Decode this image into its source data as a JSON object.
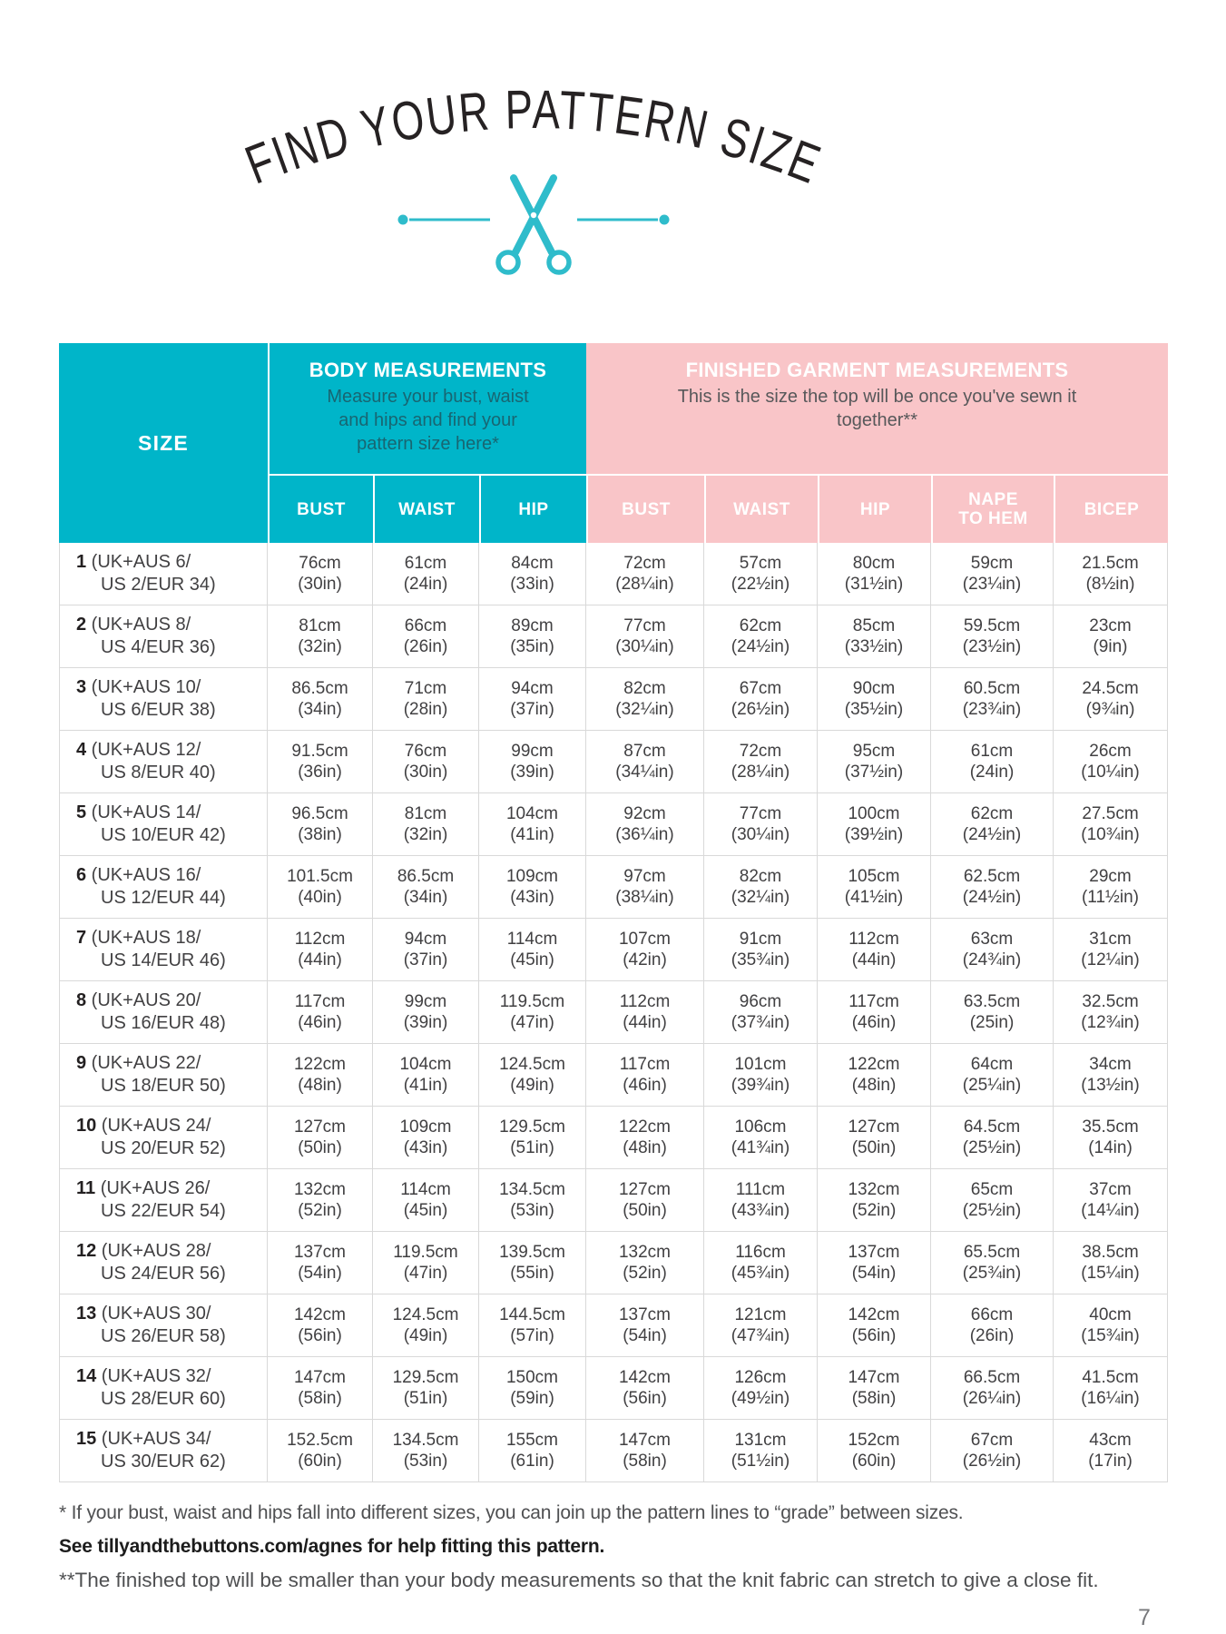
{
  "page_title": "FIND YOUR PATTERN SIZE",
  "colors": {
    "teal": "#00b5c9",
    "pink": "#f9c5c8",
    "divider_teal": "#2fbccb"
  },
  "table": {
    "size_header": "SIZE",
    "groups": {
      "body": {
        "title": "BODY MEASUREMENTS",
        "subtitle": "Measure your bust, waist and hips and find your pattern size here*"
      },
      "finished": {
        "title": "FINISHED GARMENT MEASUREMENTS",
        "subtitle": "This is the size the top will be once you've sewn it together**"
      }
    },
    "body_columns": [
      "BUST",
      "WAIST",
      "HIP"
    ],
    "finished_columns": [
      "BUST",
      "WAIST",
      "HIP",
      "NAPE\nTO HEM",
      "BICEP"
    ],
    "rows": [
      {
        "num": "1",
        "label1": "(UK+AUS 6/",
        "label2": "US 2/EUR 34)",
        "values": [
          [
            "76cm",
            "(30in)"
          ],
          [
            "61cm",
            "(24in)"
          ],
          [
            "84cm",
            "(33in)"
          ],
          [
            "72cm",
            "(28¼in)"
          ],
          [
            "57cm",
            "(22½in)"
          ],
          [
            "80cm",
            "(31½in)"
          ],
          [
            "59cm",
            "(23¼in)"
          ],
          [
            "21.5cm",
            "(8½in)"
          ]
        ]
      },
      {
        "num": "2",
        "label1": "(UK+AUS 8/",
        "label2": "US 4/EUR 36)",
        "values": [
          [
            "81cm",
            "(32in)"
          ],
          [
            "66cm",
            "(26in)"
          ],
          [
            "89cm",
            "(35in)"
          ],
          [
            "77cm",
            "(30¼in)"
          ],
          [
            "62cm",
            "(24½in)"
          ],
          [
            "85cm",
            "(33½in)"
          ],
          [
            "59.5cm",
            "(23½in)"
          ],
          [
            "23cm",
            "(9in)"
          ]
        ]
      },
      {
        "num": "3",
        "label1": "(UK+AUS 10/",
        "label2": "US 6/EUR 38)",
        "values": [
          [
            "86.5cm",
            "(34in)"
          ],
          [
            "71cm",
            "(28in)"
          ],
          [
            "94cm",
            "(37in)"
          ],
          [
            "82cm",
            "(32¼in)"
          ],
          [
            "67cm",
            "(26½in)"
          ],
          [
            "90cm",
            "(35½in)"
          ],
          [
            "60.5cm",
            "(23¾in)"
          ],
          [
            "24.5cm",
            "(9¾in)"
          ]
        ]
      },
      {
        "num": "4",
        "label1": "(UK+AUS 12/",
        "label2": "US 8/EUR 40)",
        "values": [
          [
            "91.5cm",
            "(36in)"
          ],
          [
            "76cm",
            "(30in)"
          ],
          [
            "99cm",
            "(39in)"
          ],
          [
            "87cm",
            "(34¼in)"
          ],
          [
            "72cm",
            "(28¼in)"
          ],
          [
            "95cm",
            "(37½in)"
          ],
          [
            "61cm",
            "(24in)"
          ],
          [
            "26cm",
            "(10¼in)"
          ]
        ]
      },
      {
        "num": "5",
        "label1": "(UK+AUS 14/",
        "label2": "US 10/EUR 42)",
        "values": [
          [
            "96.5cm",
            "(38in)"
          ],
          [
            "81cm",
            "(32in)"
          ],
          [
            "104cm",
            "(41in)"
          ],
          [
            "92cm",
            "(36¼in)"
          ],
          [
            "77cm",
            "(30¼in)"
          ],
          [
            "100cm",
            "(39½in)"
          ],
          [
            "62cm",
            "(24½in)"
          ],
          [
            "27.5cm",
            "(10¾in)"
          ]
        ]
      },
      {
        "num": "6",
        "label1": "(UK+AUS 16/",
        "label2": "US 12/EUR 44)",
        "values": [
          [
            "101.5cm",
            "(40in)"
          ],
          [
            "86.5cm",
            "(34in)"
          ],
          [
            "109cm",
            "(43in)"
          ],
          [
            "97cm",
            "(38¼in)"
          ],
          [
            "82cm",
            "(32¼in)"
          ],
          [
            "105cm",
            "(41½in)"
          ],
          [
            "62.5cm",
            "(24½in)"
          ],
          [
            "29cm",
            "(11½in)"
          ]
        ]
      },
      {
        "num": "7",
        "label1": "(UK+AUS 18/",
        "label2": "US 14/EUR 46)",
        "values": [
          [
            "112cm",
            "(44in)"
          ],
          [
            "94cm",
            "(37in)"
          ],
          [
            "114cm",
            "(45in)"
          ],
          [
            "107cm",
            "(42in)"
          ],
          [
            "91cm",
            "(35¾in)"
          ],
          [
            "112cm",
            "(44in)"
          ],
          [
            "63cm",
            "(24¾in)"
          ],
          [
            "31cm",
            "(12¼in)"
          ]
        ]
      },
      {
        "num": "8",
        "label1": "(UK+AUS 20/",
        "label2": "US 16/EUR 48)",
        "values": [
          [
            "117cm",
            "(46in)"
          ],
          [
            "99cm",
            "(39in)"
          ],
          [
            "119.5cm",
            "(47in)"
          ],
          [
            "112cm",
            "(44in)"
          ],
          [
            "96cm",
            "(37¾in)"
          ],
          [
            "117cm",
            "(46in)"
          ],
          [
            "63.5cm",
            "(25in)"
          ],
          [
            "32.5cm",
            "(12¾in)"
          ]
        ]
      },
      {
        "num": "9",
        "label1": "(UK+AUS 22/",
        "label2": "US 18/EUR 50)",
        "values": [
          [
            "122cm",
            "(48in)"
          ],
          [
            "104cm",
            "(41in)"
          ],
          [
            "124.5cm",
            "(49in)"
          ],
          [
            "117cm",
            "(46in)"
          ],
          [
            "101cm",
            "(39¾in)"
          ],
          [
            "122cm",
            "(48in)"
          ],
          [
            "64cm",
            "(25¼in)"
          ],
          [
            "34cm",
            "(13½in)"
          ]
        ]
      },
      {
        "num": "10",
        "label1": "(UK+AUS 24/",
        "label2": "US 20/EUR 52)",
        "values": [
          [
            "127cm",
            "(50in)"
          ],
          [
            "109cm",
            "(43in)"
          ],
          [
            "129.5cm",
            "(51in)"
          ],
          [
            "122cm",
            "(48in)"
          ],
          [
            "106cm",
            "(41¾in)"
          ],
          [
            "127cm",
            "(50in)"
          ],
          [
            "64.5cm",
            "(25½in)"
          ],
          [
            "35.5cm",
            "(14in)"
          ]
        ]
      },
      {
        "num": "11",
        "label1": "(UK+AUS 26/",
        "label2": "US 22/EUR 54)",
        "values": [
          [
            "132cm",
            "(52in)"
          ],
          [
            "114cm",
            "(45in)"
          ],
          [
            "134.5cm",
            "(53in)"
          ],
          [
            "127cm",
            "(50in)"
          ],
          [
            "111cm",
            "(43¾in)"
          ],
          [
            "132cm",
            "(52in)"
          ],
          [
            "65cm",
            "(25½in)"
          ],
          [
            "37cm",
            "(14¼in)"
          ]
        ]
      },
      {
        "num": "12",
        "label1": "(UK+AUS 28/",
        "label2": "US 24/EUR 56)",
        "values": [
          [
            "137cm",
            "(54in)"
          ],
          [
            "119.5cm",
            "(47in)"
          ],
          [
            "139.5cm",
            "(55in)"
          ],
          [
            "132cm",
            "(52in)"
          ],
          [
            "116cm",
            "(45¾in)"
          ],
          [
            "137cm",
            "(54in)"
          ],
          [
            "65.5cm",
            "(25¾in)"
          ],
          [
            "38.5cm",
            "(15¼in)"
          ]
        ]
      },
      {
        "num": "13",
        "label1": "(UK+AUS 30/",
        "label2": "US 26/EUR 58)",
        "values": [
          [
            "142cm",
            "(56in)"
          ],
          [
            "124.5cm",
            "(49in)"
          ],
          [
            "144.5cm",
            "(57in)"
          ],
          [
            "137cm",
            "(54in)"
          ],
          [
            "121cm",
            "(47¾in)"
          ],
          [
            "142cm",
            "(56in)"
          ],
          [
            "66cm",
            "(26in)"
          ],
          [
            "40cm",
            "(15¾in)"
          ]
        ]
      },
      {
        "num": "14",
        "label1": "(UK+AUS 32/",
        "label2": "US 28/EUR 60)",
        "values": [
          [
            "147cm",
            "(58in)"
          ],
          [
            "129.5cm",
            "(51in)"
          ],
          [
            "150cm",
            "(59in)"
          ],
          [
            "142cm",
            "(56in)"
          ],
          [
            "126cm",
            "(49½in)"
          ],
          [
            "147cm",
            "(58in)"
          ],
          [
            "66.5cm",
            "(26¼in)"
          ],
          [
            "41.5cm",
            "(16¼in)"
          ]
        ]
      },
      {
        "num": "15",
        "label1": "(UK+AUS 34/",
        "label2": "US 30/EUR 62)",
        "values": [
          [
            "152.5cm",
            "(60in)"
          ],
          [
            "134.5cm",
            "(53in)"
          ],
          [
            "155cm",
            "(61in)"
          ],
          [
            "147cm",
            "(58in)"
          ],
          [
            "131cm",
            "(51½in)"
          ],
          [
            "152cm",
            "(60in)"
          ],
          [
            "67cm",
            "(26½in)"
          ],
          [
            "43cm",
            "(17in)"
          ]
        ]
      }
    ]
  },
  "footnotes": {
    "grade_normal": "* If your bust, waist and hips fall into different sizes, you can join up the pattern lines to “grade” between sizes. ",
    "grade_bold": "See tillyandthebuttons.com/agnes for help fitting this pattern.",
    "finished": "**The finished top will be smaller than your body measurements so that the knit fabric can stretch to give a close fit."
  },
  "page_number": "7"
}
